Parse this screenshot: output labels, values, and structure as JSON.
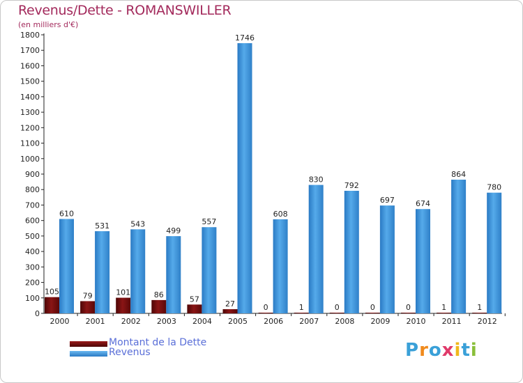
{
  "title": "Revenus/Dette - ROMANSWILLER",
  "subtitle": "(en milliers d'€)",
  "colors": {
    "debt": "#7a0f0f",
    "revenue": "#3a8fd6",
    "title": "#a32a5c",
    "legend_text": "#5a6fd8"
  },
  "chart_data": {
    "type": "bar",
    "categories": [
      "2000",
      "2001",
      "2002",
      "2003",
      "2004",
      "2005",
      "2006",
      "2007",
      "2008",
      "2009",
      "2010",
      "2011",
      "2012"
    ],
    "series": [
      {
        "name": "Montant de la Dette",
        "values": [
          105,
          79,
          101,
          86,
          57,
          27,
          0,
          1,
          0,
          0,
          0,
          1,
          1
        ]
      },
      {
        "name": "Revenus",
        "values": [
          610,
          531,
          543,
          499,
          557,
          1746,
          608,
          830,
          792,
          697,
          674,
          864,
          780
        ]
      }
    ],
    "ylim": [
      0,
      1800
    ],
    "yticks": [
      0,
      100,
      200,
      300,
      400,
      500,
      600,
      700,
      800,
      900,
      1000,
      1100,
      1200,
      1300,
      1400,
      1500,
      1600,
      1700,
      1800
    ],
    "title": "Revenus/Dette - ROMANSWILLER",
    "ylabel": "(en milliers d'€)",
    "xlabel": "",
    "legend": "bottom-left",
    "grid": false
  },
  "legend": {
    "debt_label": "Montant de la Dette",
    "revenue_label": "Revenus"
  },
  "logo": {
    "letters": [
      "P",
      "r",
      "o",
      "x",
      "i",
      "t",
      "i"
    ],
    "colors": [
      "#3aa0d8",
      "#f08a1c",
      "#3aa0d8",
      "#e03a6a",
      "#f0b81c",
      "#3aa0d8",
      "#8abf3a"
    ]
  }
}
